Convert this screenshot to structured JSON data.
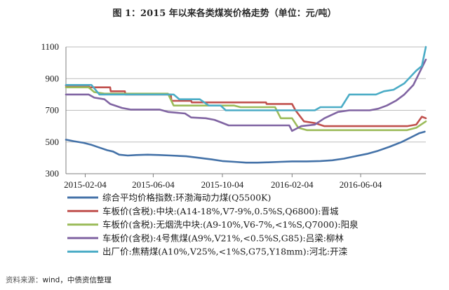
{
  "title": "图 1：2015 年以来各类煤炭价格走势（单位：元/吨）",
  "source": {
    "label": "资料来源：",
    "text": "wind，中债资信整理"
  },
  "chart_data": {
    "type": "line",
    "title": "图 1：2015 年以来各类煤炭价格走势（单位：元/吨）",
    "xlabel": "",
    "ylabel": "",
    "ylim": [
      300,
      1100
    ],
    "yticks": [
      300,
      500,
      700,
      900,
      1100
    ],
    "xlim": [
      "2015-01-01",
      "2016-09-27"
    ],
    "xticks": [
      "2015-02-04",
      "2015-06-04",
      "2015-10-04",
      "2016-02-04",
      "2016-06-04"
    ],
    "grid": "horizontal",
    "legend_position": "bottom",
    "series": [
      {
        "name": "综合平均价格指数:环渤海动力煤(Q5500K)",
        "color": "#4472a8",
        "points": [
          [
            "2015-01-01",
            515
          ],
          [
            "2015-01-15",
            505
          ],
          [
            "2015-02-01",
            495
          ],
          [
            "2015-02-15",
            482
          ],
          [
            "2015-03-01",
            465
          ],
          [
            "2015-03-15",
            448
          ],
          [
            "2015-03-25",
            440
          ],
          [
            "2015-04-05",
            420
          ],
          [
            "2015-04-20",
            415
          ],
          [
            "2015-05-05",
            418
          ],
          [
            "2015-05-25",
            420
          ],
          [
            "2015-06-15",
            418
          ],
          [
            "2015-07-05",
            415
          ],
          [
            "2015-08-01",
            410
          ],
          [
            "2015-08-25",
            400
          ],
          [
            "2015-09-15",
            390
          ],
          [
            "2015-10-04",
            380
          ],
          [
            "2015-10-25",
            375
          ],
          [
            "2015-11-15",
            370
          ],
          [
            "2015-12-05",
            370
          ],
          [
            "2015-12-25",
            372
          ],
          [
            "2016-01-15",
            375
          ],
          [
            "2016-02-04",
            378
          ],
          [
            "2016-03-01",
            378
          ],
          [
            "2016-03-25",
            380
          ],
          [
            "2016-04-15",
            385
          ],
          [
            "2016-05-05",
            395
          ],
          [
            "2016-05-25",
            410
          ],
          [
            "2016-06-15",
            425
          ],
          [
            "2016-07-05",
            445
          ],
          [
            "2016-07-25",
            470
          ],
          [
            "2016-08-15",
            500
          ],
          [
            "2016-09-01",
            530
          ],
          [
            "2016-09-15",
            555
          ],
          [
            "2016-09-25",
            565
          ]
        ]
      },
      {
        "name": "车板价(含税):中块:(A14-18%,V7-9%,0.5%S,Q6800):晋城",
        "color": "#c0504d",
        "points": [
          [
            "2015-01-01",
            855
          ],
          [
            "2015-02-10",
            855
          ],
          [
            "2015-02-11",
            845
          ],
          [
            "2015-03-20",
            845
          ],
          [
            "2015-03-21",
            820
          ],
          [
            "2015-04-15",
            820
          ],
          [
            "2015-04-16",
            800
          ],
          [
            "2015-07-05",
            800
          ],
          [
            "2015-07-06",
            760
          ],
          [
            "2015-08-10",
            760
          ],
          [
            "2015-08-11",
            750
          ],
          [
            "2015-12-20",
            750
          ],
          [
            "2015-12-21",
            740
          ],
          [
            "2016-02-04",
            740
          ],
          [
            "2016-02-10",
            700
          ],
          [
            "2016-02-25",
            630
          ],
          [
            "2016-03-15",
            620
          ],
          [
            "2016-04-01",
            600
          ],
          [
            "2016-08-25",
            600
          ],
          [
            "2016-09-10",
            610
          ],
          [
            "2016-09-20",
            660
          ],
          [
            "2016-09-27",
            650
          ]
        ]
      },
      {
        "name": "车板价(含税):无烟洗中块:(A9-10%,V6-7%,<1%S,Q7000):阳泉",
        "color": "#9bbb59",
        "points": [
          [
            "2015-01-01",
            845
          ],
          [
            "2015-02-10",
            845
          ],
          [
            "2015-02-20",
            815
          ],
          [
            "2015-03-10",
            805
          ],
          [
            "2015-06-30",
            805
          ],
          [
            "2015-07-10",
            730
          ],
          [
            "2015-10-25",
            730
          ],
          [
            "2015-11-05",
            720
          ],
          [
            "2016-01-05",
            720
          ],
          [
            "2016-01-15",
            650
          ],
          [
            "2016-02-04",
            650
          ],
          [
            "2016-02-15",
            590
          ],
          [
            "2016-03-01",
            575
          ],
          [
            "2016-08-25",
            575
          ],
          [
            "2016-09-10",
            590
          ],
          [
            "2016-09-27",
            630
          ]
        ]
      },
      {
        "name": "车板价(含税):4号焦煤(A9%,V21%,<0.5%S,G85):吕梁:柳林",
        "color": "#8064a2",
        "points": [
          [
            "2015-01-01",
            800
          ],
          [
            "2015-02-10",
            800
          ],
          [
            "2015-02-20",
            780
          ],
          [
            "2015-03-10",
            770
          ],
          [
            "2015-03-20",
            740
          ],
          [
            "2015-04-10",
            715
          ],
          [
            "2015-04-25",
            705
          ],
          [
            "2015-06-15",
            705
          ],
          [
            "2015-06-30",
            690
          ],
          [
            "2015-07-30",
            680
          ],
          [
            "2015-08-10",
            655
          ],
          [
            "2015-09-05",
            650
          ],
          [
            "2015-09-20",
            640
          ],
          [
            "2015-10-01",
            625
          ],
          [
            "2015-10-15",
            605
          ],
          [
            "2016-01-30",
            605
          ],
          [
            "2016-02-04",
            570
          ],
          [
            "2016-02-20",
            600
          ],
          [
            "2016-03-15",
            610
          ],
          [
            "2016-04-01",
            650
          ],
          [
            "2016-04-25",
            690
          ],
          [
            "2016-05-15",
            700
          ],
          [
            "2016-06-20",
            700
          ],
          [
            "2016-07-05",
            710
          ],
          [
            "2016-07-20",
            730
          ],
          [
            "2016-08-05",
            760
          ],
          [
            "2016-08-20",
            800
          ],
          [
            "2016-09-05",
            860
          ],
          [
            "2016-09-27",
            1020
          ]
        ]
      },
      {
        "name": "出厂价:焦精煤(A10%,V25%,<1%S,G75,Y18mm):河北:开滦",
        "color": "#4bacc6",
        "points": [
          [
            "2015-01-01",
            860
          ],
          [
            "2015-02-15",
            860
          ],
          [
            "2015-03-01",
            800
          ],
          [
            "2015-07-10",
            800
          ],
          [
            "2015-07-20",
            770
          ],
          [
            "2015-08-25",
            770
          ],
          [
            "2015-09-10",
            730
          ],
          [
            "2015-10-01",
            730
          ],
          [
            "2015-10-10",
            700
          ],
          [
            "2016-03-15",
            700
          ],
          [
            "2016-03-25",
            720
          ],
          [
            "2016-05-01",
            720
          ],
          [
            "2016-05-15",
            800
          ],
          [
            "2016-07-01",
            800
          ],
          [
            "2016-07-15",
            820
          ],
          [
            "2016-08-01",
            830
          ],
          [
            "2016-08-20",
            870
          ],
          [
            "2016-09-10",
            950
          ],
          [
            "2016-09-20",
            980
          ],
          [
            "2016-09-27",
            1100
          ]
        ]
      }
    ]
  }
}
